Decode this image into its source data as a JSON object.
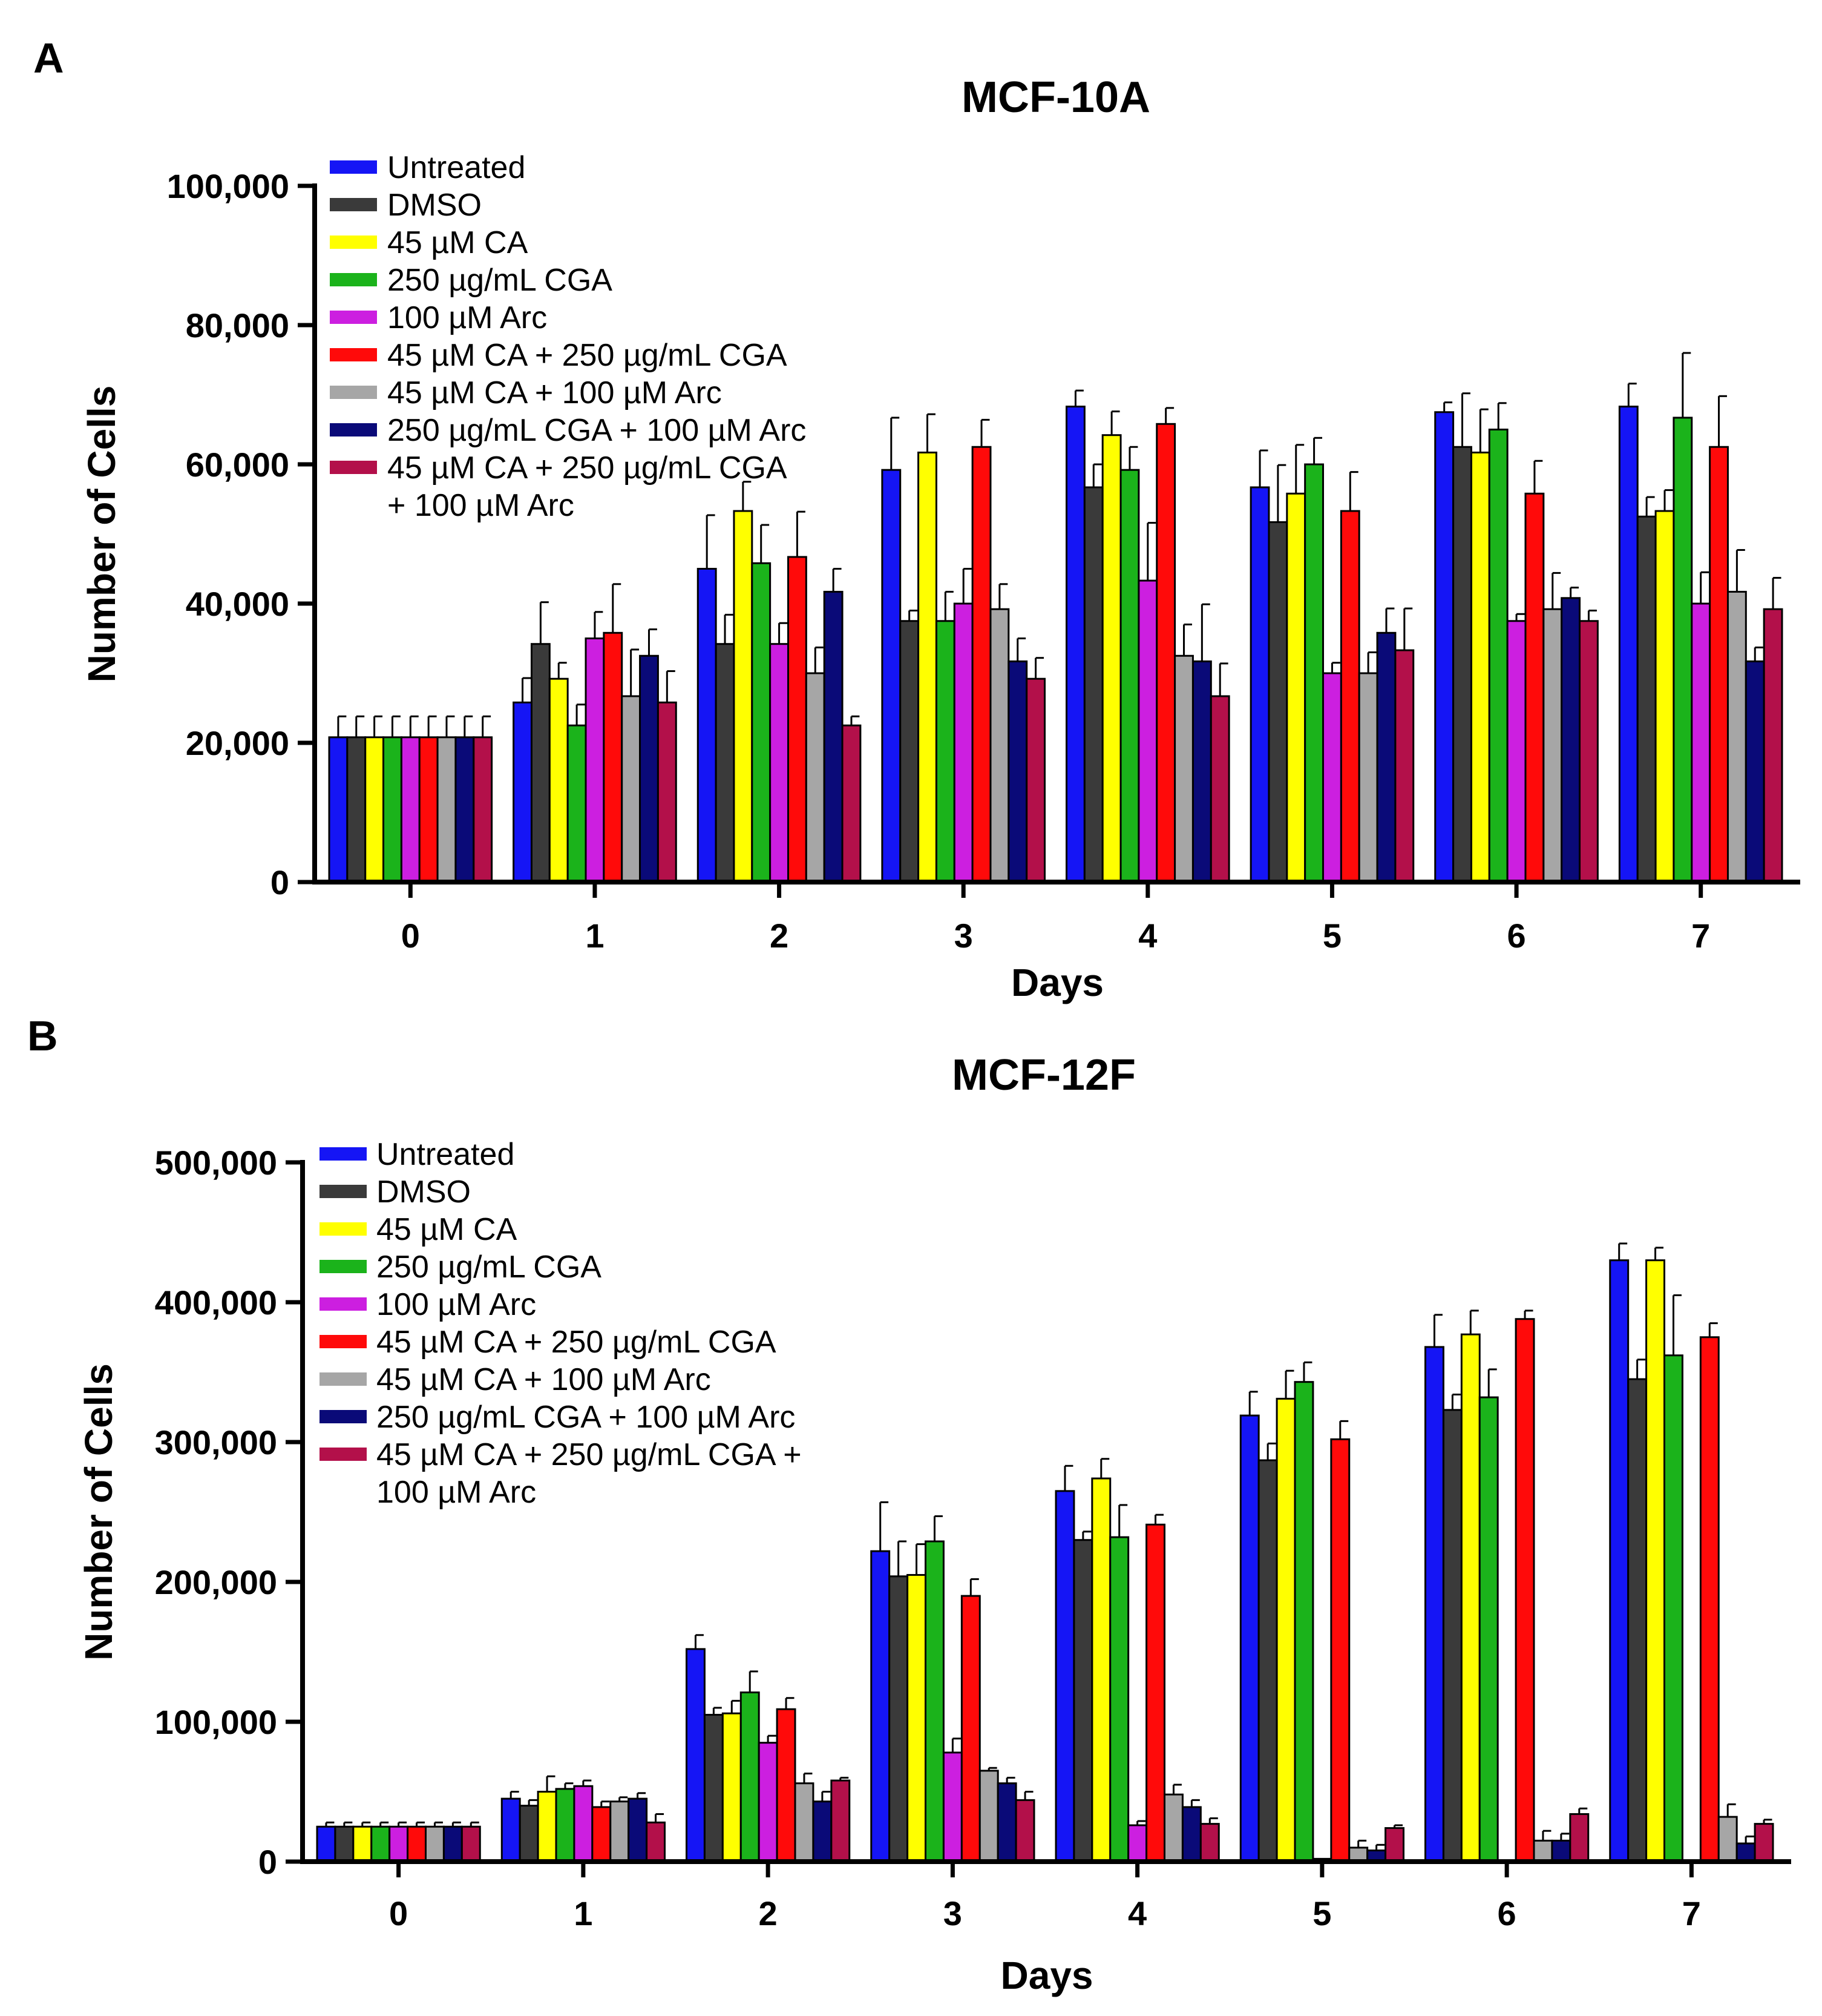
{
  "panels": [
    {
      "letter": "A"
    },
    {
      "letter": "B"
    }
  ],
  "chart_data": [
    {
      "type": "bar",
      "title": "MCF-10A",
      "xlabel": "Days",
      "ylabel": "Number of Cells",
      "ylim": [
        0,
        100000
      ],
      "yticks": [
        0,
        20000,
        40000,
        60000,
        80000,
        100000
      ],
      "ytick_labels": [
        "0",
        "20,000",
        "40,000",
        "60,000",
        "80,000",
        "100,000"
      ],
      "categories": [
        "0",
        "1",
        "2",
        "3",
        "4",
        "5",
        "6",
        "7"
      ],
      "legend_position": "top-left",
      "series": [
        {
          "name": "Untreated",
          "color": "#1515f5",
          "values": [
            20800,
            25800,
            45000,
            59200,
            68300,
            56700,
            67500,
            68300
          ],
          "errors": [
            3000,
            3500,
            7700,
            7500,
            2300,
            5300,
            1400,
            3300
          ]
        },
        {
          "name": "DMSO",
          "color": "#3a3a3a",
          "values": [
            20800,
            34200,
            34200,
            37500,
            56700,
            51700,
            62500,
            52500
          ],
          "errors": [
            3000,
            6000,
            4200,
            1500,
            3300,
            8200,
            7700,
            2800
          ]
        },
        {
          "name": "45 µM CA",
          "color": "#ffff00",
          "values": [
            20800,
            29200,
            53300,
            61700,
            64200,
            55800,
            61700,
            53300
          ],
          "errors": [
            3000,
            2300,
            4200,
            5500,
            3400,
            7000,
            6200,
            3000
          ]
        },
        {
          "name": "250 µg/mL CGA",
          "color": "#1bb31b",
          "values": [
            20800,
            22500,
            45800,
            37500,
            59200,
            60000,
            65000,
            66700
          ],
          "errors": [
            3000,
            3000,
            5500,
            4200,
            3300,
            3800,
            3800,
            9300
          ]
        },
        {
          "name": "100 µM Arc",
          "color": "#cc1fe0",
          "values": [
            20800,
            35000,
            34200,
            40000,
            43300,
            30000,
            37500,
            40000
          ],
          "errors": [
            3000,
            3800,
            3000,
            5000,
            8300,
            1500,
            1000,
            4500
          ]
        },
        {
          "name": "45 µM CA + 250 µg/mL CGA",
          "color": "#ff0a0a",
          "values": [
            20800,
            35800,
            46700,
            62500,
            65800,
            53300,
            55800,
            62500
          ],
          "errors": [
            3000,
            7000,
            6500,
            3900,
            2300,
            5600,
            4700,
            7300
          ]
        },
        {
          "name": "45 µM CA + 100 µM Arc",
          "color": "#a6a6a6",
          "values": [
            20800,
            26700,
            30000,
            39200,
            32500,
            30000,
            39200,
            41700
          ],
          "errors": [
            3000,
            6700,
            3700,
            3600,
            4500,
            3000,
            5200,
            6000
          ]
        },
        {
          "name": "250 µg/mL CGA + 100 µM Arc",
          "color": "#0a0a78",
          "values": [
            20800,
            32500,
            41700,
            31700,
            31700,
            35800,
            40800,
            31700
          ],
          "errors": [
            3000,
            3800,
            3300,
            3300,
            8200,
            3500,
            1500,
            2000
          ]
        },
        {
          "name": "45 µM CA + 250 µg/mL CGA",
          "name2": "+ 100 µM Arc",
          "color": "#b3104a",
          "values": [
            20800,
            25800,
            22500,
            29200,
            26700,
            33300,
            37500,
            39200
          ],
          "errors": [
            3000,
            4500,
            1300,
            3000,
            4700,
            6000,
            1500,
            4500
          ]
        }
      ]
    },
    {
      "type": "bar",
      "title": "MCF-12F",
      "xlabel": "Days",
      "ylabel": "Number of Cells",
      "ylim": [
        0,
        500000
      ],
      "yticks": [
        0,
        100000,
        200000,
        300000,
        400000,
        500000
      ],
      "ytick_labels": [
        "0",
        "100,000",
        "200,000",
        "300,000",
        "400,000",
        "500,000"
      ],
      "categories": [
        "0",
        "1",
        "2",
        "3",
        "4",
        "5",
        "6",
        "7"
      ],
      "legend_position": "top-left",
      "series": [
        {
          "name": "Untreated",
          "color": "#1515f5",
          "values": [
            25000,
            45000,
            152000,
            222000,
            265000,
            319000,
            368000,
            430000
          ],
          "errors": [
            3000,
            5000,
            10000,
            35000,
            18000,
            17000,
            23000,
            12000
          ]
        },
        {
          "name": "DMSO",
          "color": "#3a3a3a",
          "values": [
            25000,
            40000,
            105000,
            204000,
            230000,
            287000,
            323000,
            345000
          ],
          "errors": [
            3000,
            4000,
            5000,
            25000,
            6000,
            12000,
            11000,
            14000
          ]
        },
        {
          "name": "45 µM CA",
          "color": "#ffff00",
          "values": [
            25000,
            50000,
            106000,
            205000,
            274000,
            331000,
            377000,
            430000
          ],
          "errors": [
            3000,
            11000,
            9000,
            22000,
            14000,
            20000,
            17000,
            9000
          ]
        },
        {
          "name": "250 µg/mL CGA",
          "color": "#1bb31b",
          "values": [
            25000,
            52000,
            121000,
            229000,
            232000,
            343000,
            332000,
            362000
          ],
          "errors": [
            3000,
            4000,
            15000,
            18000,
            23000,
            14000,
            20000,
            43000
          ]
        },
        {
          "name": "100 µM Arc",
          "color": "#cc1fe0",
          "values": [
            25000,
            54000,
            85000,
            78000,
            26000,
            2000,
            1000,
            1000
          ],
          "errors": [
            3000,
            4000,
            5000,
            10000,
            3000,
            0,
            0,
            0
          ]
        },
        {
          "name": "45 µM CA + 250 µg/mL CGA",
          "color": "#ff0a0a",
          "values": [
            25000,
            39000,
            109000,
            190000,
            241000,
            302000,
            388000,
            375000
          ],
          "errors": [
            3000,
            4000,
            8000,
            12000,
            7000,
            13000,
            6000,
            10000
          ]
        },
        {
          "name": "45 µM CA + 100 µM Arc",
          "color": "#a6a6a6",
          "values": [
            25000,
            43000,
            56000,
            65000,
            48000,
            10000,
            15000,
            32000
          ],
          "errors": [
            3000,
            3000,
            7000,
            2000,
            7000,
            5000,
            7000,
            9000
          ]
        },
        {
          "name": "250 µg/mL CGA + 100 µM Arc",
          "color": "#0a0a78",
          "values": [
            25000,
            45000,
            43000,
            56000,
            39000,
            8000,
            15000,
            13000
          ],
          "errors": [
            3000,
            4000,
            7000,
            4000,
            5000,
            4000,
            5000,
            5000
          ]
        },
        {
          "name": "45 µM CA + 250 µg/mL CGA +",
          "name2": "100 µM Arc",
          "color": "#b3104a",
          "values": [
            25000,
            28000,
            58000,
            44000,
            27000,
            24000,
            34000,
            27000
          ],
          "errors": [
            3000,
            6000,
            2000,
            6000,
            4000,
            2000,
            4000,
            3000
          ]
        }
      ]
    }
  ]
}
